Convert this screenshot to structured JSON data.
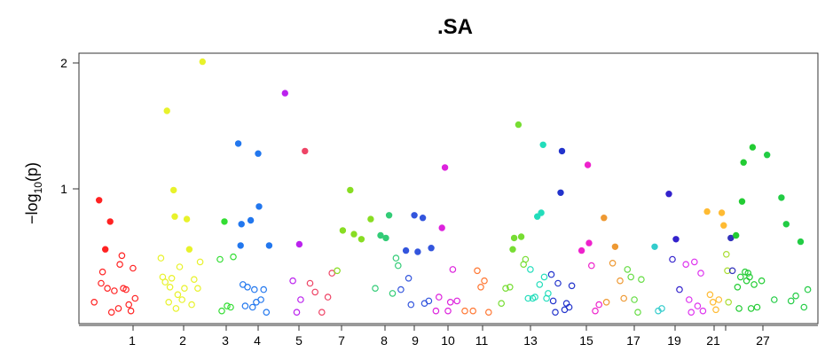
{
  "chart_data": {
    "type": "scatter",
    "title": ".SA",
    "xlabel": "",
    "ylabel_main": "−log",
    "ylabel_sub": "10",
    "ylabel_tail": "(p)",
    "ylim": [
      0,
      2.08
    ],
    "y_ticks": [
      {
        "value": 1,
        "label": "1"
      },
      {
        "value": 2,
        "label": "2"
      }
    ],
    "chromosomes": [
      {
        "id": "1",
        "label": "1",
        "color": "#ff2222",
        "snps": [
          {
            "pos": 0.08,
            "p": 0.1
          },
          {
            "pos": 0.15,
            "p": 0.91
          },
          {
            "pos": 0.18,
            "p": 0.25
          },
          {
            "pos": 0.2,
            "p": 0.34
          },
          {
            "pos": 0.24,
            "p": 0.52
          },
          {
            "pos": 0.27,
            "p": 0.21
          },
          {
            "pos": 0.31,
            "p": 0.74
          },
          {
            "pos": 0.33,
            "p": 0.02
          },
          {
            "pos": 0.37,
            "p": 0.19
          },
          {
            "pos": 0.43,
            "p": 0.05
          },
          {
            "pos": 0.45,
            "p": 0.4
          },
          {
            "pos": 0.48,
            "p": 0.47
          },
          {
            "pos": 0.5,
            "p": 0.21
          },
          {
            "pos": 0.54,
            "p": 0.2
          },
          {
            "pos": 0.58,
            "p": 0.08
          },
          {
            "pos": 0.61,
            "p": 0.03
          },
          {
            "pos": 0.64,
            "p": 0.37
          },
          {
            "pos": 0.67,
            "p": 0.13
          }
        ]
      },
      {
        "id": "2",
        "label": "2",
        "color": "#e8f22b",
        "snps": [
          {
            "pos": 0.05,
            "p": 0.45
          },
          {
            "pos": 0.08,
            "p": 0.3
          },
          {
            "pos": 0.12,
            "p": 0.26
          },
          {
            "pos": 0.15,
            "p": 1.62
          },
          {
            "pos": 0.18,
            "p": 0.1
          },
          {
            "pos": 0.2,
            "p": 0.22
          },
          {
            "pos": 0.23,
            "p": 0.29
          },
          {
            "pos": 0.26,
            "p": 0.99
          },
          {
            "pos": 0.28,
            "p": 0.78
          },
          {
            "pos": 0.3,
            "p": 0.05
          },
          {
            "pos": 0.33,
            "p": 0.16
          },
          {
            "pos": 0.36,
            "p": 0.38
          },
          {
            "pos": 0.4,
            "p": 0.12
          },
          {
            "pos": 0.44,
            "p": 0.21
          },
          {
            "pos": 0.48,
            "p": 0.76
          },
          {
            "pos": 0.52,
            "p": 0.52
          },
          {
            "pos": 0.56,
            "p": 0.08
          },
          {
            "pos": 0.6,
            "p": 0.28
          },
          {
            "pos": 0.66,
            "p": 0.21
          },
          {
            "pos": 0.7,
            "p": 0.42
          },
          {
            "pos": 0.74,
            "p": 2.01
          }
        ]
      },
      {
        "id": "3",
        "label": "3",
        "color": "#33dd33",
        "snps": [
          {
            "pos": 0.1,
            "p": 0.44
          },
          {
            "pos": 0.2,
            "p": 0.03
          },
          {
            "pos": 0.35,
            "p": 0.74
          },
          {
            "pos": 0.5,
            "p": 0.07
          },
          {
            "pos": 0.7,
            "p": 0.06
          },
          {
            "pos": 0.85,
            "p": 0.46
          }
        ]
      },
      {
        "id": "4",
        "label": "4",
        "color": "#2277ee",
        "snps": [
          {
            "pos": 0.05,
            "p": 1.36
          },
          {
            "pos": 0.1,
            "p": 0.55
          },
          {
            "pos": 0.12,
            "p": 0.72
          },
          {
            "pos": 0.15,
            "p": 0.24
          },
          {
            "pos": 0.2,
            "p": 0.07
          },
          {
            "pos": 0.25,
            "p": 0.22
          },
          {
            "pos": 0.32,
            "p": 0.75
          },
          {
            "pos": 0.36,
            "p": 0.06
          },
          {
            "pos": 0.4,
            "p": 0.2
          },
          {
            "pos": 0.44,
            "p": 0.1
          },
          {
            "pos": 0.48,
            "p": 1.28
          },
          {
            "pos": 0.5,
            "p": 0.86
          },
          {
            "pos": 0.54,
            "p": 0.12
          },
          {
            "pos": 0.6,
            "p": 0.2
          },
          {
            "pos": 0.66,
            "p": 0.02
          },
          {
            "pos": 0.72,
            "p": 0.55
          }
        ]
      },
      {
        "id": "5",
        "label": "5",
        "color": "#bb22ee",
        "snps": [
          {
            "pos": 0.15,
            "p": 1.76
          },
          {
            "pos": 0.55,
            "p": 0.27
          },
          {
            "pos": 0.75,
            "p": 0.02
          },
          {
            "pos": 0.88,
            "p": 0.56
          },
          {
            "pos": 0.95,
            "p": 0.12
          }
        ]
      },
      {
        "id": "6",
        "label": "",
        "color": "#ee4466",
        "snps": [
          {
            "pos": 0.1,
            "p": 1.3
          },
          {
            "pos": 0.25,
            "p": 0.25
          },
          {
            "pos": 0.4,
            "p": 0.18
          },
          {
            "pos": 0.6,
            "p": 0.02
          },
          {
            "pos": 0.78,
            "p": 0.14
          },
          {
            "pos": 0.9,
            "p": 0.33
          }
        ]
      },
      {
        "id": "7",
        "label": "7",
        "color": "#88dd22",
        "snps": [
          {
            "pos": 0.05,
            "p": 0.35
          },
          {
            "pos": 0.2,
            "p": 0.67
          },
          {
            "pos": 0.4,
            "p": 0.99
          },
          {
            "pos": 0.5,
            "p": 0.64
          },
          {
            "pos": 0.7,
            "p": 0.6
          },
          {
            "pos": 0.95,
            "p": 0.76
          }
        ]
      },
      {
        "id": "8",
        "label": "8",
        "color": "#33cc77",
        "snps": [
          {
            "pos": 0.1,
            "p": 0.21
          },
          {
            "pos": 0.3,
            "p": 0.63
          },
          {
            "pos": 0.5,
            "p": 0.61
          },
          {
            "pos": 0.62,
            "p": 0.79
          },
          {
            "pos": 0.75,
            "p": 0.17
          },
          {
            "pos": 0.88,
            "p": 0.45
          },
          {
            "pos": 0.96,
            "p": 0.39
          }
        ]
      },
      {
        "id": "9",
        "label": "9",
        "color": "#3355dd",
        "snps": [
          {
            "pos": 0.05,
            "p": 0.2
          },
          {
            "pos": 0.2,
            "p": 0.51
          },
          {
            "pos": 0.28,
            "p": 0.29
          },
          {
            "pos": 0.35,
            "p": 0.08
          },
          {
            "pos": 0.45,
            "p": 0.79
          },
          {
            "pos": 0.55,
            "p": 0.5
          },
          {
            "pos": 0.7,
            "p": 0.77
          },
          {
            "pos": 0.75,
            "p": 0.09
          },
          {
            "pos": 0.88,
            "p": 0.11
          },
          {
            "pos": 0.95,
            "p": 0.53
          }
        ]
      },
      {
        "id": "10",
        "label": "10",
        "color": "#dd22dd",
        "snps": [
          {
            "pos": 0.1,
            "p": 0.03
          },
          {
            "pos": 0.2,
            "p": 0.14
          },
          {
            "pos": 0.3,
            "p": 0.69
          },
          {
            "pos": 0.4,
            "p": 1.17
          },
          {
            "pos": 0.5,
            "p": 0.03
          },
          {
            "pos": 0.58,
            "p": 0.1
          },
          {
            "pos": 0.66,
            "p": 0.36
          },
          {
            "pos": 0.8,
            "p": 0.11
          }
        ]
      },
      {
        "id": "11",
        "label": "11",
        "color": "#ff7733",
        "snps": [
          {
            "pos": 0.05,
            "p": 0.03
          },
          {
            "pos": 0.28,
            "p": 0.03
          },
          {
            "pos": 0.4,
            "p": 0.35
          },
          {
            "pos": 0.5,
            "p": 0.22
          },
          {
            "pos": 0.6,
            "p": 0.27
          },
          {
            "pos": 0.72,
            "p": 0.02
          }
        ]
      },
      {
        "id": "12",
        "label": "",
        "color": "#77dd33",
        "snps": [
          {
            "pos": 0.1,
            "p": 0.09
          },
          {
            "pos": 0.25,
            "p": 0.21
          },
          {
            "pos": 0.4,
            "p": 0.22
          },
          {
            "pos": 0.5,
            "p": 0.52
          },
          {
            "pos": 0.55,
            "p": 0.61
          },
          {
            "pos": 0.7,
            "p": 1.51
          },
          {
            "pos": 0.8,
            "p": 0.62
          },
          {
            "pos": 0.88,
            "p": 0.4
          },
          {
            "pos": 0.95,
            "p": 0.44
          }
        ]
      },
      {
        "id": "13",
        "label": "13",
        "color": "#22ddbb",
        "snps": [
          {
            "pos": 0.05,
            "p": 0.13
          },
          {
            "pos": 0.15,
            "p": 0.36
          },
          {
            "pos": 0.25,
            "p": 0.13
          },
          {
            "pos": 0.35,
            "p": 0.14
          },
          {
            "pos": 0.45,
            "p": 0.78
          },
          {
            "pos": 0.55,
            "p": 0.24
          },
          {
            "pos": 0.62,
            "p": 0.81
          },
          {
            "pos": 0.7,
            "p": 1.35
          },
          {
            "pos": 0.75,
            "p": 0.3
          },
          {
            "pos": 0.85,
            "p": 0.13
          },
          {
            "pos": 0.92,
            "p": 0.17
          }
        ]
      },
      {
        "id": "14",
        "label": "",
        "color": "#2233cc",
        "snps": [
          {
            "pos": 0.05,
            "p": 0.32
          },
          {
            "pos": 0.12,
            "p": 0.11
          },
          {
            "pos": 0.2,
            "p": 0.02
          },
          {
            "pos": 0.3,
            "p": 0.25
          },
          {
            "pos": 0.4,
            "p": 0.97
          },
          {
            "pos": 0.45,
            "p": 1.3
          },
          {
            "pos": 0.55,
            "p": 0.04
          },
          {
            "pos": 0.62,
            "p": 0.09
          },
          {
            "pos": 0.72,
            "p": 0.06
          },
          {
            "pos": 0.82,
            "p": 0.23
          }
        ]
      },
      {
        "id": "15",
        "label": "15",
        "color": "#ee22cc",
        "snps": [
          {
            "pos": 0.2,
            "p": 0.51
          },
          {
            "pos": 0.45,
            "p": 1.19
          },
          {
            "pos": 0.5,
            "p": 0.57
          },
          {
            "pos": 0.6,
            "p": 0.39
          },
          {
            "pos": 0.75,
            "p": 0.03
          },
          {
            "pos": 0.9,
            "p": 0.08
          }
        ]
      },
      {
        "id": "16",
        "label": "",
        "color": "#ee9933",
        "snps": [
          {
            "pos": 0.1,
            "p": 0.77
          },
          {
            "pos": 0.2,
            "p": 0.1
          },
          {
            "pos": 0.45,
            "p": 0.41
          },
          {
            "pos": 0.55,
            "p": 0.54
          },
          {
            "pos": 0.75,
            "p": 0.27
          },
          {
            "pos": 0.9,
            "p": 0.13
          }
        ]
      },
      {
        "id": "17",
        "label": "17",
        "color": "#66dd44",
        "snps": [
          {
            "pos": 0.05,
            "p": 0.36
          },
          {
            "pos": 0.2,
            "p": 0.3
          },
          {
            "pos": 0.35,
            "p": 0.12
          },
          {
            "pos": 0.5,
            "p": 0.02
          },
          {
            "pos": 0.65,
            "p": 0.28
          }
        ]
      },
      {
        "id": "18",
        "label": "",
        "color": "#33cccc",
        "snps": [
          {
            "pos": 0.3,
            "p": 0.54
          },
          {
            "pos": 0.5,
            "p": 0.03
          },
          {
            "pos": 0.7,
            "p": 0.05
          }
        ]
      },
      {
        "id": "19",
        "label": "19",
        "color": "#3322cc",
        "snps": [
          {
            "pos": 0.1,
            "p": 0.96
          },
          {
            "pos": 0.3,
            "p": 0.44
          },
          {
            "pos": 0.5,
            "p": 0.6
          },
          {
            "pos": 0.7,
            "p": 0.2
          }
        ]
      },
      {
        "id": "20",
        "label": "",
        "color": "#dd33ee",
        "snps": [
          {
            "pos": 0.05,
            "p": 0.4
          },
          {
            "pos": 0.2,
            "p": 0.12
          },
          {
            "pos": 0.3,
            "p": 0.02
          },
          {
            "pos": 0.45,
            "p": 0.42
          },
          {
            "pos": 0.6,
            "p": 0.07
          },
          {
            "pos": 0.75,
            "p": 0.33
          },
          {
            "pos": 0.85,
            "p": 0.03
          }
        ]
      },
      {
        "id": "21",
        "label": "21",
        "color": "#ffbb33",
        "snps": [
          {
            "pos": 0.05,
            "p": 0.82
          },
          {
            "pos": 0.2,
            "p": 0.16
          },
          {
            "pos": 0.35,
            "p": 0.1
          },
          {
            "pos": 0.5,
            "p": 0.04
          },
          {
            "pos": 0.65,
            "p": 0.12
          },
          {
            "pos": 0.8,
            "p": 0.81
          },
          {
            "pos": 0.9,
            "p": 0.71
          }
        ]
      },
      {
        "id": "22",
        "label": "",
        "color": "#aadd33",
        "snps": [
          {
            "pos": 0.2,
            "p": 0.48
          },
          {
            "pos": 0.5,
            "p": 0.35
          },
          {
            "pos": 0.8,
            "p": 0.1
          }
        ]
      },
      {
        "id": "23",
        "label": "",
        "color": "#3333bb",
        "snps": [
          {
            "pos": 0.3,
            "p": 0.61
          },
          {
            "pos": 0.6,
            "p": 0.35
          }
        ]
      },
      {
        "id": "24",
        "label": "",
        "color": "#22cc33",
        "snps": [
          {
            "pos": 0.05,
            "p": 0.63
          },
          {
            "pos": 0.1,
            "p": 0.22
          },
          {
            "pos": 0.15,
            "p": 0.05
          },
          {
            "pos": 0.2,
            "p": 0.3
          },
          {
            "pos": 0.25,
            "p": 0.9
          },
          {
            "pos": 0.3,
            "p": 1.21
          },
          {
            "pos": 0.35,
            "p": 0.34
          },
          {
            "pos": 0.4,
            "p": 0.27
          },
          {
            "pos": 0.45,
            "p": 0.33
          },
          {
            "pos": 0.5,
            "p": 0.3
          },
          {
            "pos": 0.55,
            "p": 0.05
          },
          {
            "pos": 0.6,
            "p": 1.33
          },
          {
            "pos": 0.65,
            "p": 0.24
          },
          {
            "pos": 0.75,
            "p": 0.06
          },
          {
            "pos": 0.9,
            "p": 0.27
          }
        ]
      },
      {
        "id": "27",
        "label": "27",
        "color": "#22cc44",
        "snps": [
          {
            "pos": 0.05,
            "p": 1.27
          },
          {
            "pos": 0.2,
            "p": 0.12
          },
          {
            "pos": 0.35,
            "p": 0.93
          },
          {
            "pos": 0.45,
            "p": 0.72
          },
          {
            "pos": 0.55,
            "p": 0.11
          },
          {
            "pos": 0.65,
            "p": 0.15
          },
          {
            "pos": 0.75,
            "p": 0.58
          },
          {
            "pos": 0.82,
            "p": 0.06
          },
          {
            "pos": 0.9,
            "p": 0.2
          }
        ]
      }
    ]
  }
}
